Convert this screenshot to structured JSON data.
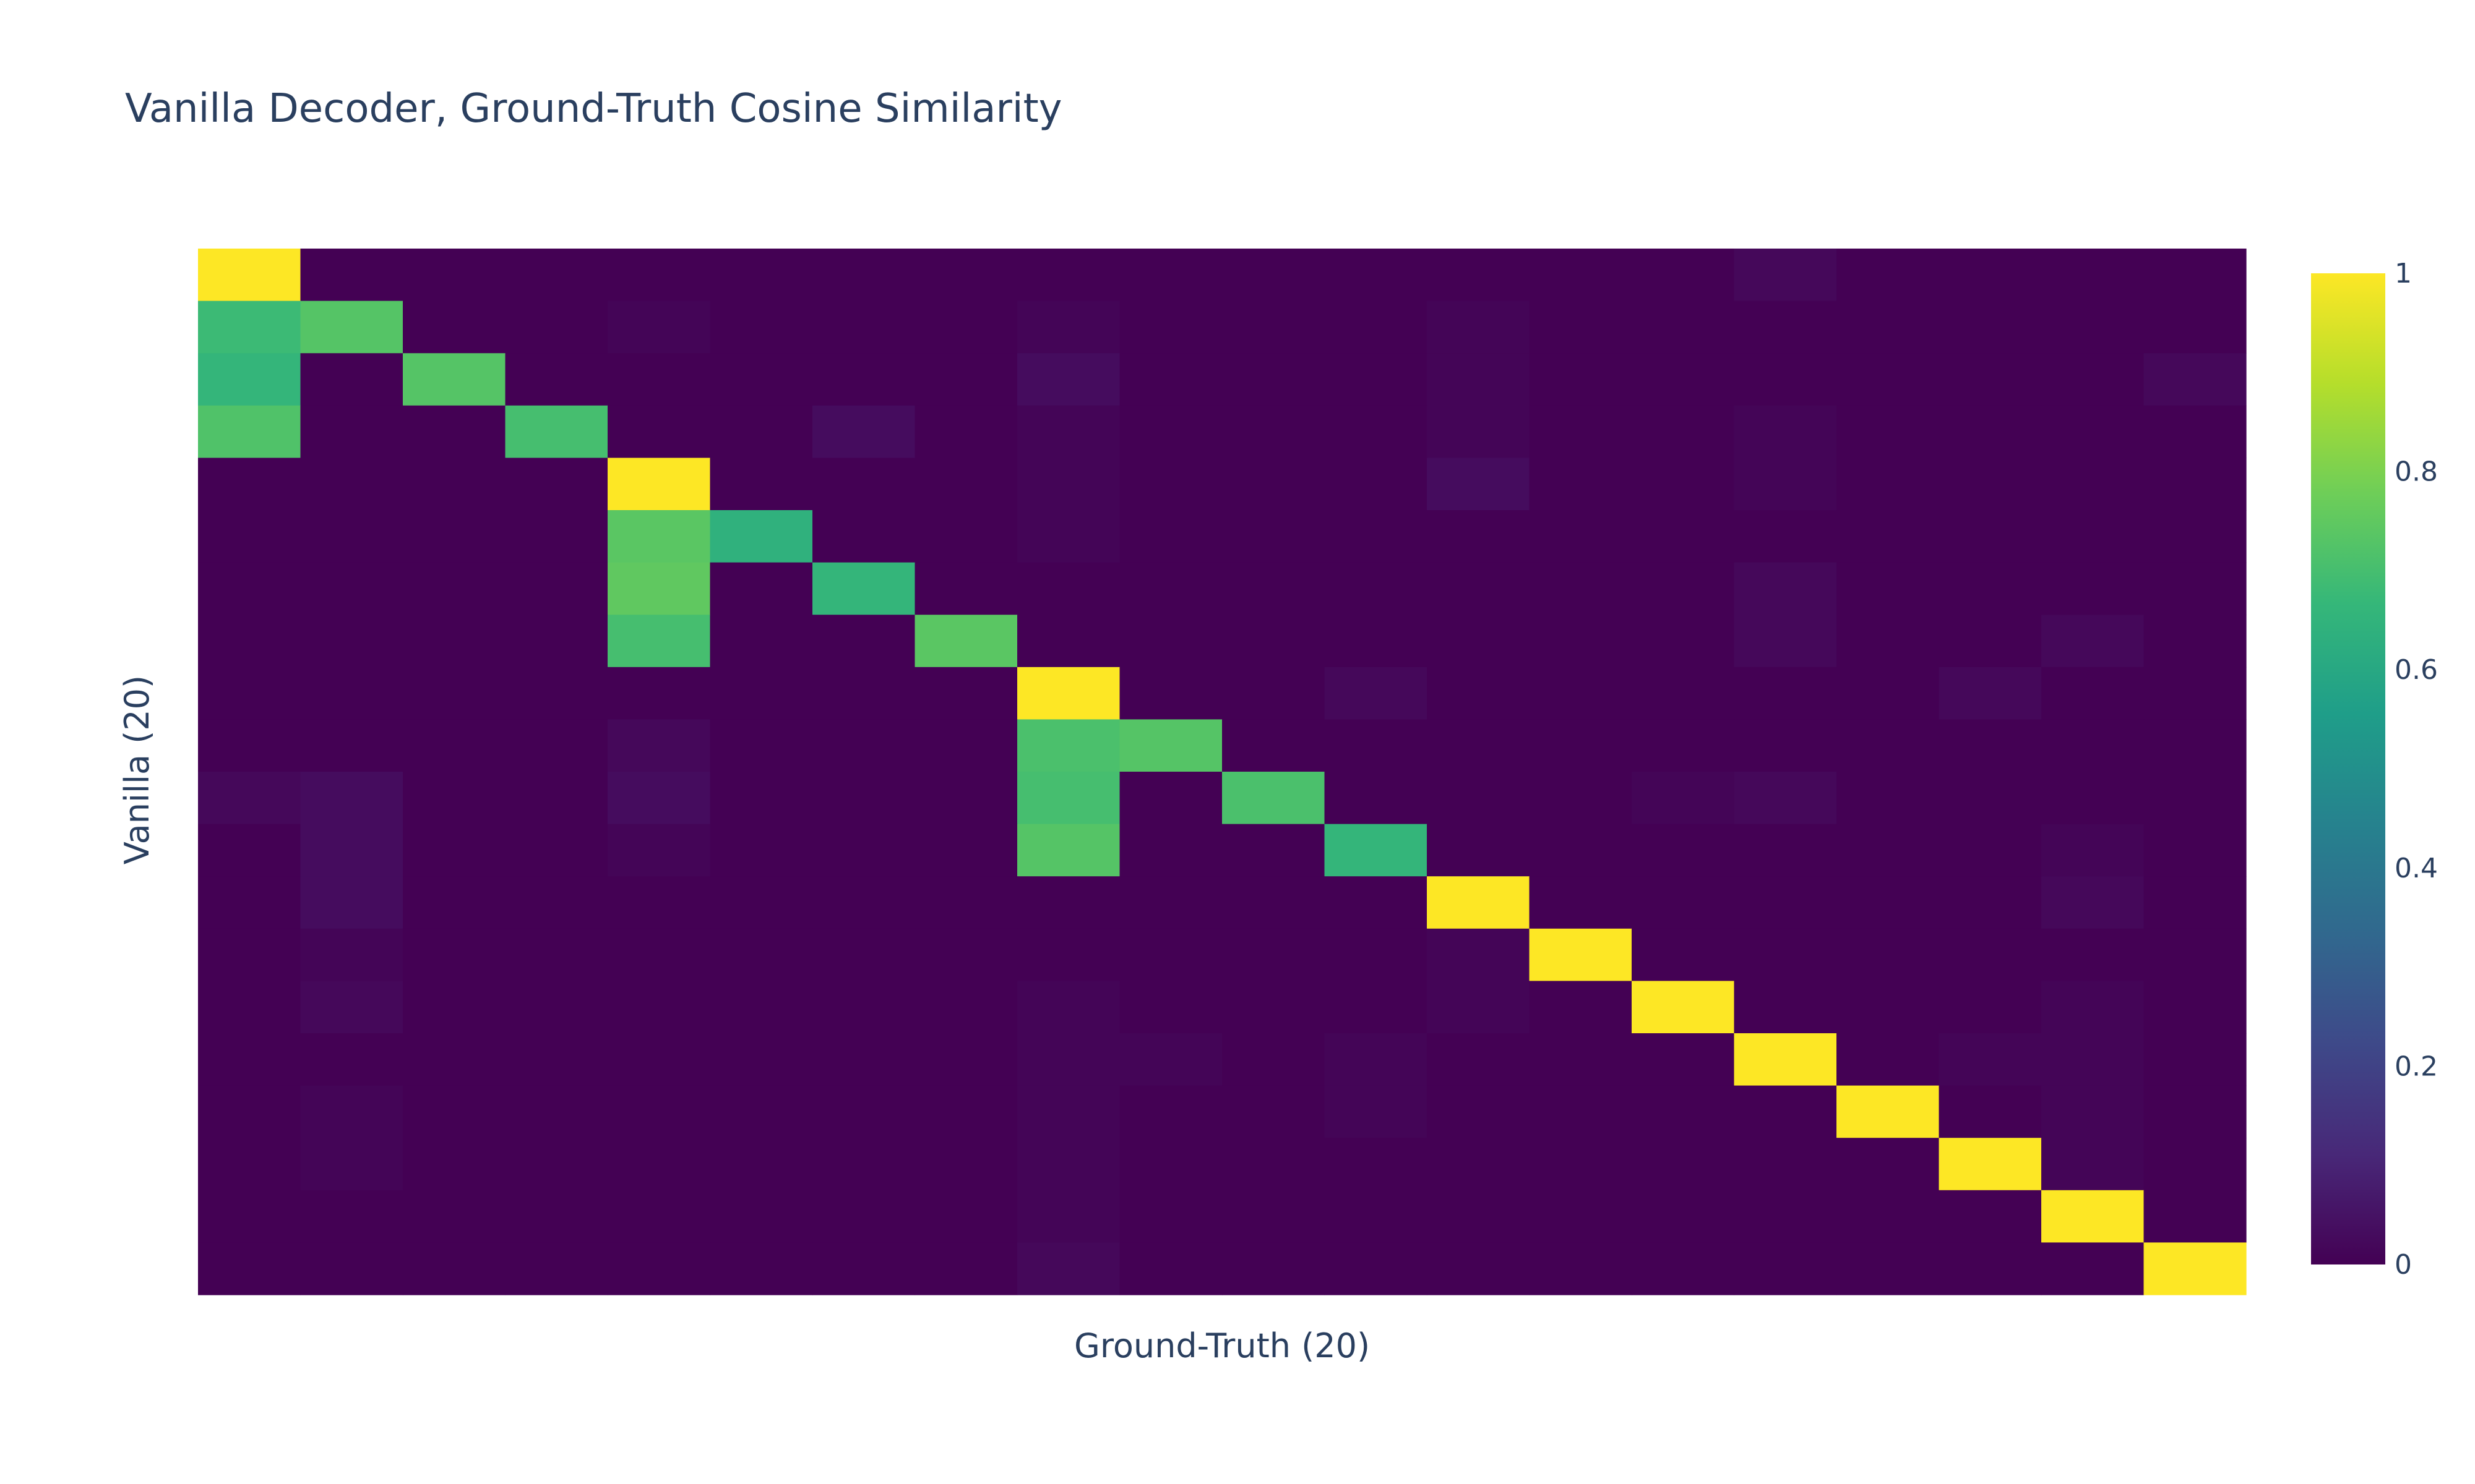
{
  "chart_data": {
    "type": "heatmap",
    "title": "Vanilla Decoder, Ground-Truth Cosine Similarity",
    "xlabel": "Ground-Truth (20)",
    "ylabel": "Vanilla (20)",
    "colorscale": "viridis",
    "zmin": 0,
    "zmax": 1,
    "colorbar_ticks": [
      {
        "value": 0,
        "label": "0"
      },
      {
        "value": 0.2,
        "label": "0.2"
      },
      {
        "value": 0.4,
        "label": "0.4"
      },
      {
        "value": 0.6,
        "label": "0.6"
      },
      {
        "value": 0.8,
        "label": "0.8"
      },
      {
        "value": 1,
        "label": "1"
      }
    ],
    "colorbar_stops": [
      {
        "value": 0,
        "color": "#440154"
      },
      {
        "value": 0.111,
        "color": "#482878"
      },
      {
        "value": 0.222,
        "color": "#3e4989"
      },
      {
        "value": 0.333,
        "color": "#31688e"
      },
      {
        "value": 0.444,
        "color": "#26828e"
      },
      {
        "value": 0.556,
        "color": "#1f9e89"
      },
      {
        "value": 0.667,
        "color": "#35b779"
      },
      {
        "value": 0.778,
        "color": "#6ece58"
      },
      {
        "value": 0.889,
        "color": "#b5de2b"
      },
      {
        "value": 1,
        "color": "#fde725"
      }
    ],
    "z": [
      [
        1.0,
        0.0,
        0.0,
        0.0,
        0.0,
        0.0,
        0.0,
        0.0,
        0.0,
        0.0,
        0.0,
        0.0,
        0.0,
        0.0,
        0.0,
        0.02,
        0.0,
        0.0,
        0.0,
        0.0
      ],
      [
        0.68,
        0.73,
        0.0,
        0.0,
        0.01,
        0.0,
        0.0,
        0.0,
        0.01,
        0.0,
        0.0,
        0.0,
        0.01,
        0.0,
        0.0,
        0.0,
        0.0,
        0.0,
        0.0,
        0.0
      ],
      [
        0.66,
        0.0,
        0.73,
        0.0,
        0.0,
        0.0,
        0.0,
        0.0,
        0.03,
        0.0,
        0.0,
        0.0,
        0.01,
        0.0,
        0.0,
        0.0,
        0.0,
        0.0,
        0.0,
        0.02
      ],
      [
        0.72,
        0.0,
        0.0,
        0.7,
        0.0,
        0.0,
        0.03,
        0.0,
        0.01,
        0.0,
        0.0,
        0.0,
        0.01,
        0.0,
        0.0,
        0.01,
        0.0,
        0.0,
        0.0,
        0.0
      ],
      [
        0.0,
        0.0,
        0.0,
        0.0,
        1.0,
        0.0,
        0.0,
        0.0,
        0.01,
        0.0,
        0.0,
        0.0,
        0.03,
        0.0,
        0.0,
        0.01,
        0.0,
        0.0,
        0.0,
        0.0
      ],
      [
        0.0,
        0.0,
        0.0,
        0.0,
        0.74,
        0.64,
        0.0,
        0.0,
        0.01,
        0.0,
        0.0,
        0.0,
        0.0,
        0.0,
        0.0,
        0.0,
        0.0,
        0.0,
        0.0,
        0.0
      ],
      [
        0.0,
        0.0,
        0.0,
        0.0,
        0.75,
        0.0,
        0.66,
        0.0,
        0.0,
        0.0,
        0.0,
        0.0,
        0.0,
        0.0,
        0.0,
        0.02,
        0.0,
        0.0,
        0.0,
        0.0
      ],
      [
        0.0,
        0.0,
        0.0,
        0.0,
        0.7,
        0.0,
        0.0,
        0.74,
        0.0,
        0.0,
        0.0,
        0.0,
        0.0,
        0.0,
        0.0,
        0.02,
        0.0,
        0.0,
        0.02,
        0.0
      ],
      [
        0.0,
        0.0,
        0.0,
        0.0,
        0.0,
        0.0,
        0.0,
        0.0,
        1.0,
        0.0,
        0.0,
        0.02,
        0.0,
        0.0,
        0.0,
        0.0,
        0.0,
        0.02,
        0.0,
        0.0
      ],
      [
        0.0,
        0.0,
        0.0,
        0.0,
        0.02,
        0.0,
        0.0,
        0.0,
        0.71,
        0.73,
        0.0,
        0.0,
        0.0,
        0.0,
        0.0,
        0.0,
        0.0,
        0.0,
        0.0,
        0.0
      ],
      [
        0.02,
        0.03,
        0.0,
        0.0,
        0.03,
        0.0,
        0.0,
        0.0,
        0.7,
        0.0,
        0.71,
        0.0,
        0.0,
        0.0,
        0.01,
        0.02,
        0.0,
        0.0,
        0.0,
        0.0
      ],
      [
        0.0,
        0.03,
        0.0,
        0.0,
        0.01,
        0.0,
        0.0,
        0.0,
        0.73,
        0.0,
        0.0,
        0.66,
        0.0,
        0.0,
        0.0,
        0.0,
        0.0,
        0.0,
        0.01,
        0.0
      ],
      [
        0.0,
        0.03,
        0.0,
        0.0,
        0.0,
        0.0,
        0.0,
        0.0,
        0.0,
        0.0,
        0.0,
        0.0,
        1.0,
        0.0,
        0.0,
        0.0,
        0.0,
        0.0,
        0.02,
        0.0
      ],
      [
        0.0,
        0.01,
        0.0,
        0.0,
        0.0,
        0.0,
        0.0,
        0.0,
        0.0,
        0.0,
        0.0,
        0.0,
        0.01,
        1.0,
        0.0,
        0.0,
        0.0,
        0.0,
        0.0,
        0.0
      ],
      [
        0.0,
        0.02,
        0.0,
        0.0,
        0.0,
        0.0,
        0.0,
        0.0,
        0.01,
        0.0,
        0.0,
        0.0,
        0.01,
        0.0,
        1.0,
        0.0,
        0.0,
        0.0,
        0.01,
        0.0
      ],
      [
        0.0,
        0.0,
        0.0,
        0.0,
        0.0,
        0.0,
        0.0,
        0.0,
        0.01,
        0.01,
        0.0,
        0.01,
        0.0,
        0.0,
        0.0,
        1.0,
        0.0,
        0.01,
        0.01,
        0.0
      ],
      [
        0.0,
        0.01,
        0.0,
        0.0,
        0.0,
        0.0,
        0.0,
        0.0,
        0.01,
        0.0,
        0.0,
        0.01,
        0.0,
        0.0,
        0.0,
        0.0,
        1.0,
        0.0,
        0.01,
        0.0
      ],
      [
        0.0,
        0.01,
        0.0,
        0.0,
        0.0,
        0.0,
        0.0,
        0.0,
        0.01,
        0.0,
        0.0,
        0.0,
        0.0,
        0.0,
        0.0,
        0.0,
        0.0,
        1.0,
        0.01,
        0.0
      ],
      [
        0.0,
        0.0,
        0.0,
        0.0,
        0.0,
        0.0,
        0.0,
        0.0,
        0.01,
        0.0,
        0.0,
        0.0,
        0.0,
        0.0,
        0.0,
        0.0,
        0.0,
        0.0,
        1.0,
        0.0
      ],
      [
        0.0,
        0.0,
        0.0,
        0.0,
        0.0,
        0.0,
        0.0,
        0.0,
        0.02,
        0.0,
        0.0,
        0.0,
        0.0,
        0.0,
        0.0,
        0.0,
        0.0,
        0.0,
        0.0,
        1.0
      ]
    ]
  }
}
